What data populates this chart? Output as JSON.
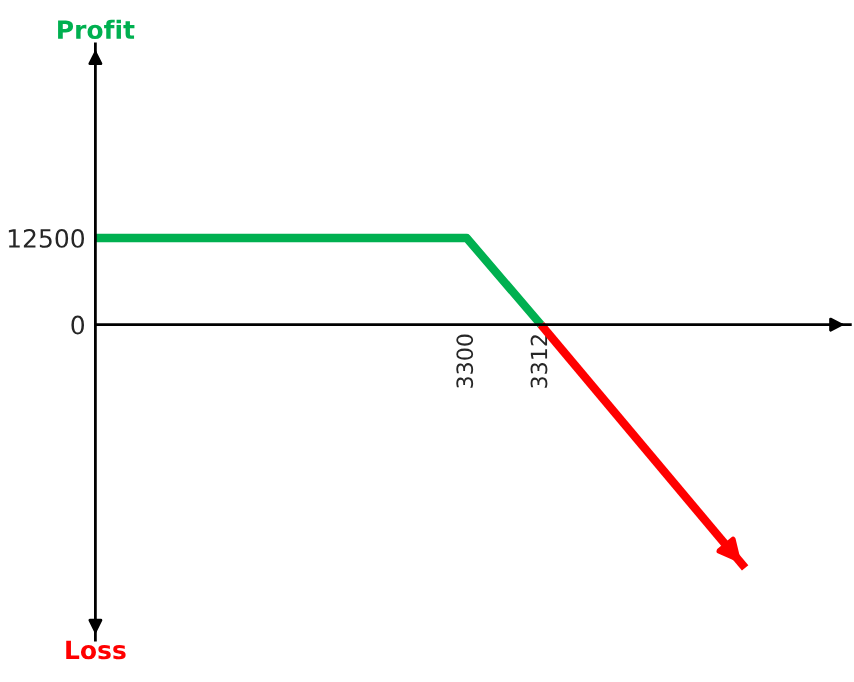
{
  "chart_data": {
    "type": "line",
    "series": [
      {
        "color": "#00b050",
        "x": [
          3240,
          3300,
          3312
        ],
        "values": [
          12500,
          12500,
          0
        ]
      },
      {
        "color": "#ff0000",
        "x": [
          3312,
          3345
        ],
        "values": [
          0,
          -35100
        ]
      }
    ],
    "xlim": [
      3240,
      3362
    ],
    "ylim": [
      -45500,
      40500
    ],
    "xticks": [
      3300,
      3312
    ],
    "yticks": [
      0,
      12500
    ],
    "annotations": [
      "Profit",
      "Loss"
    ],
    "grid": false,
    "legend": false
  }
}
